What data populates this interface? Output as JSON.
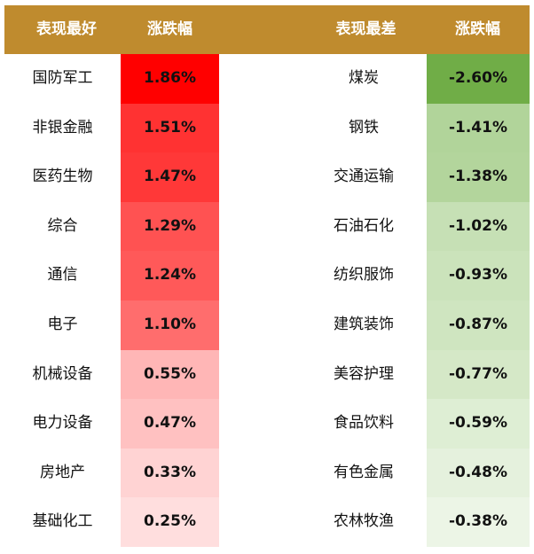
{
  "header": {
    "best_label": "表现最好",
    "best_change_label": "涨跌幅",
    "worst_label": "表现最差",
    "worst_change_label": "涨跌幅",
    "background": "#bf8b2e"
  },
  "chart_data": {
    "type": "table",
    "columns": [
      "表现最好",
      "涨跌幅",
      "表现最差",
      "涨跌幅"
    ],
    "best": [
      {
        "name": "国防军工",
        "value": "1.86%",
        "color": "#ff0000"
      },
      {
        "name": "非银金融",
        "value": "1.51%",
        "color": "#ff3232"
      },
      {
        "name": "医药生物",
        "value": "1.47%",
        "color": "#ff3838"
      },
      {
        "name": "综合",
        "value": "1.29%",
        "color": "#ff5252"
      },
      {
        "name": "通信",
        "value": "1.24%",
        "color": "#ff5959"
      },
      {
        "name": "电子",
        "value": "1.10%",
        "color": "#ff6d6d"
      },
      {
        "name": "机械设备",
        "value": "0.55%",
        "color": "#ffb6b6"
      },
      {
        "name": "电力设备",
        "value": "0.47%",
        "color": "#ffc1c1"
      },
      {
        "name": "房地产",
        "value": "0.33%",
        "color": "#ffd3d3"
      },
      {
        "name": "基础化工",
        "value": "0.25%",
        "color": "#ffdede"
      }
    ],
    "worst": [
      {
        "name": "煤炭",
        "value": "-2.60%",
        "color": "#70ad47"
      },
      {
        "name": "钢铁",
        "value": "-1.41%",
        "color": "#b1d49a"
      },
      {
        "name": "交通运输",
        "value": "-1.38%",
        "color": "#b3d59c"
      },
      {
        "name": "石油石化",
        "value": "-1.02%",
        "color": "#c6e0b5"
      },
      {
        "name": "纺织服饰",
        "value": "-0.93%",
        "color": "#cbe3bb"
      },
      {
        "name": "建筑装饰",
        "value": "-0.87%",
        "color": "#cfe5c0"
      },
      {
        "name": "美容护理",
        "value": "-0.77%",
        "color": "#d5e8c7"
      },
      {
        "name": "食品饮料",
        "value": "-0.59%",
        "color": "#deeed4"
      },
      {
        "name": "有色金属",
        "value": "-0.48%",
        "color": "#e5f1dd"
      },
      {
        "name": "农林牧渔",
        "value": "-0.38%",
        "color": "#ecf5e6"
      }
    ]
  }
}
